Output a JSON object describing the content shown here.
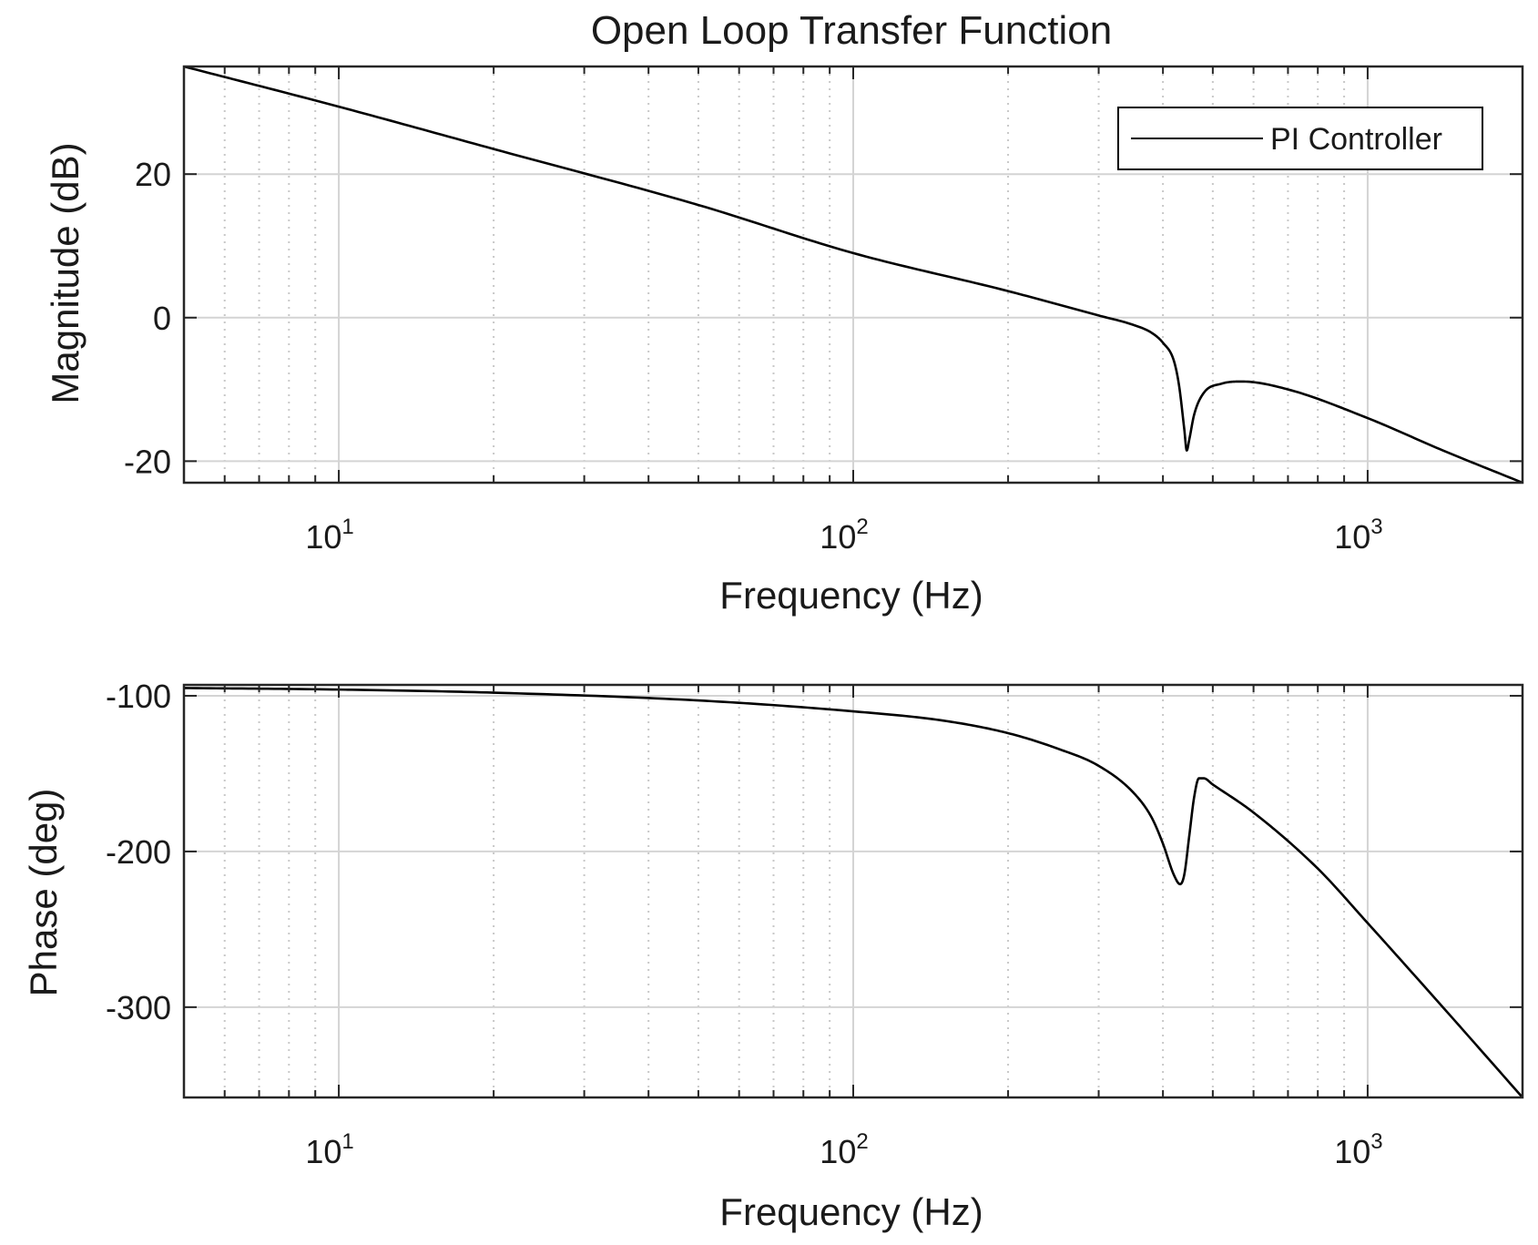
{
  "chart_data": [
    {
      "type": "line",
      "title": "Open Loop Transfer Function",
      "xlabel": "Frequency (Hz)",
      "ylabel": "Magnitude (dB)",
      "xscale": "log",
      "xlim": [
        5,
        2000
      ],
      "ylim": [
        -23,
        35
      ],
      "grid": true,
      "legend_position": "top-right",
      "xticks": [
        {
          "base": "10",
          "exp": "1",
          "value": 10
        },
        {
          "base": "10",
          "exp": "2",
          "value": 100
        },
        {
          "base": "10",
          "exp": "3",
          "value": 1000
        }
      ],
      "yticks": [
        {
          "label": "20",
          "value": 20
        },
        {
          "label": "0",
          "value": 0
        },
        {
          "label": "-20",
          "value": -20
        }
      ],
      "series": [
        {
          "name": "PI Controller",
          "color": "#000000",
          "x": [
            5,
            10,
            20,
            50,
            100,
            200,
            300,
            350,
            380,
            400,
            420,
            430,
            440,
            445,
            450,
            460,
            480,
            520,
            570,
            700,
            1000,
            1400,
            2000
          ],
          "y": [
            35.0,
            29.4,
            23.5,
            15.7,
            9.0,
            3.7,
            0.3,
            -1.0,
            -2.1,
            -3.5,
            -6.0,
            -9.5,
            -15.5,
            -18.5,
            -17.0,
            -13.5,
            -10.5,
            -9.2,
            -8.9,
            -10.0,
            -14.0,
            -18.5,
            -23.0
          ]
        }
      ]
    },
    {
      "type": "line",
      "title": "",
      "xlabel": "Frequency (Hz)",
      "ylabel": "Phase (deg)",
      "xscale": "log",
      "xlim": [
        5,
        2000
      ],
      "ylim": [
        -358,
        -93
      ],
      "grid": true,
      "xticks": [
        {
          "base": "10",
          "exp": "1",
          "value": 10
        },
        {
          "base": "10",
          "exp": "2",
          "value": 100
        },
        {
          "base": "10",
          "exp": "3",
          "value": 1000
        }
      ],
      "yticks": [
        {
          "label": "-100",
          "value": -100
        },
        {
          "label": "-200",
          "value": -200
        },
        {
          "label": "-300",
          "value": -300
        }
      ],
      "series": [
        {
          "name": "PI Controller",
          "color": "#000000",
          "x": [
            5,
            10,
            20,
            50,
            100,
            150,
            200,
            250,
            300,
            350,
            380,
            400,
            420,
            432,
            440,
            450,
            460,
            470,
            480,
            500,
            600,
            800,
            1000,
            1400,
            2000
          ],
          "y": [
            -95,
            -96,
            -98,
            -103,
            -110,
            -116,
            -124,
            -134,
            -145,
            -162,
            -178,
            -195,
            -215,
            -221,
            -215,
            -190,
            -165,
            -153,
            -153,
            -157,
            -175,
            -211,
            -246,
            -300,
            -358
          ]
        }
      ]
    }
  ]
}
